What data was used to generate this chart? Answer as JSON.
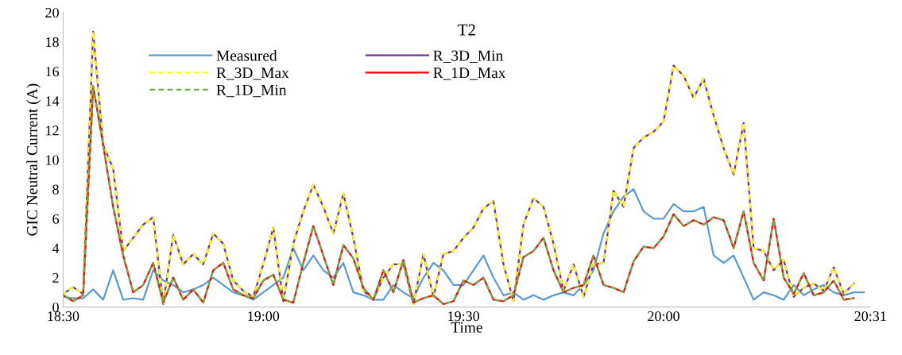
{
  "chart_data": {
    "type": "line",
    "title": "T2",
    "xlabel": "Time",
    "ylabel": "GIC Neutral Current (A)",
    "x": [
      18.5,
      18.525,
      18.55,
      18.575,
      18.6,
      18.625,
      18.65,
      18.675,
      18.7,
      18.725,
      18.75,
      18.775,
      18.8,
      18.825,
      18.85,
      18.875,
      18.9,
      18.925,
      18.95,
      18.975,
      19,
      19.025,
      19.05,
      19.075,
      19.1,
      19.125,
      19.15,
      19.175,
      19.2,
      19.225,
      19.25,
      19.275,
      19.3,
      19.325,
      19.35,
      19.375,
      19.4,
      19.425,
      19.45,
      19.475,
      19.5,
      19.525,
      19.55,
      19.575,
      19.6,
      19.625,
      19.65,
      19.675,
      19.7,
      19.725,
      19.75,
      19.775,
      19.8,
      19.825,
      19.85,
      19.875,
      19.9,
      19.925,
      19.95,
      19.975,
      20,
      20.025,
      20.05,
      20.075,
      20.1,
      20.125,
      20.15,
      20.175,
      20.2,
      20.225,
      20.25,
      20.275,
      20.3,
      20.325,
      20.35,
      20.375,
      20.4,
      20.425,
      20.45,
      20.475,
      20.5
    ],
    "series": [
      {
        "name": "Measured",
        "color": "#5b9bd5",
        "line_style": "solid",
        "values": [
          0.7,
          0.6,
          0.6,
          1.2,
          0.5,
          2.5,
          0.5,
          0.6,
          0.5,
          2.5,
          1.8,
          1.5,
          1.0,
          1.2,
          1.5,
          2.0,
          1.5,
          1.0,
          0.8,
          0.5,
          1.0,
          1.5,
          2.0,
          4.0,
          2.5,
          3.5,
          2.5,
          2.0,
          3.0,
          1.0,
          0.8,
          0.5,
          0.5,
          1.5,
          1.0,
          0.6,
          2.0,
          3.0,
          2.5,
          1.5,
          1.5,
          2.5,
          3.5,
          2.0,
          0.8,
          1.0,
          0.5,
          0.8,
          0.5,
          0.8,
          1.0,
          0.8,
          1.5,
          2.5,
          5.0,
          6.5,
          7.5,
          8.0,
          6.5,
          6.0,
          6.0,
          7.0,
          6.5,
          6.5,
          6.8,
          3.5,
          3.0,
          3.5,
          2.0,
          0.5,
          1.0,
          0.8,
          0.5,
          1.5,
          0.8,
          1.2,
          1.5,
          1.0,
          0.8,
          1.0,
          1.0
        ]
      },
      {
        "name": "R_3D_Min",
        "color": "#7030a0",
        "line_style": "solid",
        "values": [
          0.9,
          1.35,
          0.9,
          18.7,
          11,
          9.4,
          3.8,
          4.7,
          5.6,
          6.1,
          0.2,
          4.9,
          2.9,
          3.6,
          2.9,
          5.0,
          4.3,
          1.8,
          1.1,
          0.7,
          2.9,
          5.4,
          0.4,
          4.3,
          6.5,
          8.3,
          6.8,
          5.0,
          7.7,
          4.7,
          1.1,
          0.5,
          2.0,
          2.9,
          2.9,
          0.2,
          3.6,
          0.7,
          3.6,
          3.8,
          4.7,
          5.4,
          6.7,
          7.2,
          2.9,
          0.4,
          5.6,
          7.4,
          6.8,
          4.3,
          1.1,
          2.9,
          0.7,
          2.9,
          3.0,
          7.9,
          6.8,
          10.8,
          11.5,
          11.9,
          12.6,
          16.4,
          15.7,
          14.2,
          15.5,
          13.0,
          10.8,
          9.0,
          12.5,
          4.0,
          3.8,
          2.5,
          3.2,
          0.7,
          1.3,
          1.6,
          1.1,
          2.7,
          0.9,
          1.6,
          null
        ]
      },
      {
        "name": "R_3D_Max",
        "color": "#ffff00",
        "line_style": "dashed",
        "values": [
          0.9,
          1.35,
          0.9,
          18.7,
          11,
          9.4,
          3.8,
          4.7,
          5.6,
          6.1,
          0.2,
          4.9,
          2.9,
          3.6,
          2.9,
          5.0,
          4.3,
          1.8,
          1.1,
          0.7,
          2.9,
          5.4,
          0.4,
          4.3,
          6.5,
          8.3,
          6.8,
          5.0,
          7.7,
          4.7,
          1.1,
          0.5,
          2.0,
          2.9,
          2.9,
          0.2,
          3.6,
          0.7,
          3.6,
          3.8,
          4.7,
          5.4,
          6.7,
          7.2,
          2.9,
          0.4,
          5.6,
          7.4,
          6.8,
          4.3,
          1.1,
          2.9,
          0.7,
          2.9,
          3.0,
          7.9,
          6.8,
          10.8,
          11.5,
          11.9,
          12.6,
          16.4,
          15.7,
          14.2,
          15.5,
          13.0,
          10.8,
          9.0,
          12.5,
          4.0,
          3.8,
          2.5,
          3.2,
          0.7,
          1.3,
          1.6,
          1.1,
          2.7,
          0.9,
          1.6,
          null
        ]
      },
      {
        "name": "R_1D_Max",
        "color": "#ff0000",
        "line_style": "solid",
        "values": [
          0.8,
          0.4,
          0.8,
          15.0,
          11,
          6.8,
          3.5,
          1.0,
          1.5,
          3.0,
          0.3,
          2.0,
          0.5,
          1.2,
          0.3,
          2.5,
          3.0,
          1.2,
          0.8,
          0.6,
          1.8,
          2.2,
          0.5,
          0.3,
          3.0,
          5.5,
          3.5,
          1.5,
          4.2,
          3.3,
          1.3,
          0.5,
          2.5,
          1.0,
          3.2,
          0.3,
          0.6,
          0.8,
          0.2,
          0.4,
          1.8,
          1.5,
          2.0,
          0.5,
          0.4,
          0.8,
          3.4,
          3.8,
          4.7,
          2.5,
          1.0,
          1.3,
          1.5,
          3.5,
          1.5,
          1.3,
          1.0,
          3.1,
          4.1,
          4.0,
          4.8,
          6.3,
          5.5,
          5.9,
          5.6,
          6.1,
          5.9,
          4.0,
          6.5,
          3.0,
          1.8,
          6.0,
          2.0,
          0.9,
          2.3,
          0.8,
          1.0,
          1.8,
          0.5,
          0.6,
          null
        ]
      },
      {
        "name": "R_1D_Min",
        "color": "#70ad47",
        "line_style": "dashed",
        "values": [
          0.8,
          0.4,
          0.8,
          15.0,
          11,
          6.8,
          3.5,
          1.0,
          1.5,
          3.0,
          0.3,
          2.0,
          0.5,
          1.2,
          0.3,
          2.5,
          3.0,
          1.2,
          0.8,
          0.6,
          1.8,
          2.2,
          0.5,
          0.3,
          3.0,
          5.5,
          3.5,
          1.5,
          4.2,
          3.3,
          1.3,
          0.5,
          2.5,
          1.0,
          3.2,
          0.3,
          0.6,
          0.8,
          0.2,
          0.4,
          1.8,
          1.5,
          2.0,
          0.5,
          0.4,
          0.8,
          3.4,
          3.8,
          4.7,
          2.5,
          1.0,
          1.3,
          1.5,
          3.5,
          1.5,
          1.3,
          1.0,
          3.1,
          4.1,
          4.0,
          4.8,
          6.3,
          5.5,
          5.9,
          5.6,
          6.1,
          5.9,
          4.0,
          6.5,
          3.0,
          1.8,
          6.0,
          2.0,
          0.9,
          2.3,
          0.8,
          1.0,
          1.8,
          0.5,
          0.6,
          null
        ]
      }
    ],
    "xlim": [
      18.5,
      20.5167
    ],
    "xticks": [
      {
        "value": 18.5,
        "label": "18:30"
      },
      {
        "value": 19,
        "label": "19:00"
      },
      {
        "value": 19.5,
        "label": "19:30"
      },
      {
        "value": 20,
        "label": "20:00"
      },
      {
        "value": 20.5167,
        "label": "20:31"
      }
    ],
    "ylim": [
      0,
      20
    ],
    "yticks": [
      0,
      2,
      4,
      6,
      8,
      10,
      12,
      14,
      16,
      18,
      20
    ],
    "grid": false,
    "legend": "top left",
    "marker": "none"
  }
}
